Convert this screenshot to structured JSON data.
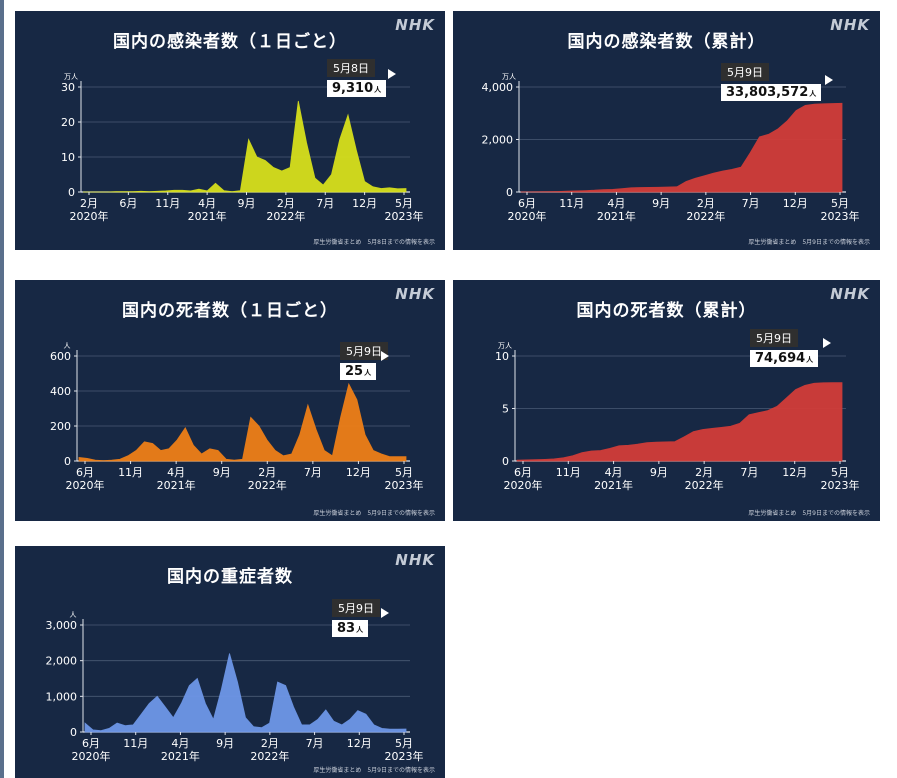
{
  "brand": "NHK",
  "chart_data": [
    {
      "type": "area",
      "title": "国内の感染者数（１日ごと）",
      "ylabel": "万人",
      "ylim": [
        0,
        30
      ],
      "yticks": [
        "0",
        "10",
        "20",
        "30"
      ],
      "xticks": [
        {
          "label": "2月",
          "year": "2020年"
        },
        {
          "label": "6月"
        },
        {
          "label": "11月"
        },
        {
          "label": "4月",
          "year": "2021年"
        },
        {
          "label": "9月"
        },
        {
          "label": "2月",
          "year": "2022年"
        },
        {
          "label": "7月"
        },
        {
          "label": "12月"
        },
        {
          "label": "5月",
          "year": "2023年"
        }
      ],
      "x": [
        0,
        1,
        2,
        3,
        4,
        5,
        6,
        7,
        8,
        9,
        10,
        11,
        12,
        13,
        14,
        15,
        16,
        17,
        18,
        19,
        20,
        21,
        22,
        23,
        24,
        25,
        26,
        27,
        28,
        29,
        30,
        31,
        32,
        33,
        34,
        35,
        36,
        37,
        38,
        39
      ],
      "values": [
        0,
        0,
        0,
        0,
        0.1,
        0.1,
        0.1,
        0.2,
        0.1,
        0.2,
        0.3,
        0.5,
        0.5,
        0.3,
        0.8,
        0.3,
        2.5,
        0.4,
        0.1,
        0.4,
        15,
        10,
        9,
        7,
        6,
        7,
        26,
        14,
        4,
        2,
        5,
        15,
        22,
        12,
        3,
        1.5,
        1,
        1.2,
        0.9,
        1
      ],
      "color": "#d7e01b",
      "annotation": {
        "date": "5月8日",
        "value": "9,310",
        "unit": "人"
      },
      "source": "厚生労働省まとめ　5月8日までの情報を表示"
    },
    {
      "type": "area",
      "title": "国内の感染者数（累計）",
      "ylabel": "万人",
      "ylim": [
        0,
        4000
      ],
      "yticks": [
        "0",
        "2,000",
        "4,000"
      ],
      "xticks": [
        {
          "label": "6月",
          "year": "2020年"
        },
        {
          "label": "11月"
        },
        {
          "label": "4月",
          "year": "2021年"
        },
        {
          "label": "9月"
        },
        {
          "label": "2月",
          "year": "2022年"
        },
        {
          "label": "7月"
        },
        {
          "label": "12月"
        },
        {
          "label": "5月",
          "year": "2023年"
        }
      ],
      "x": [
        0,
        1,
        2,
        3,
        4,
        5,
        6,
        7,
        8,
        9,
        10,
        11,
        12,
        13,
        14,
        15,
        16,
        17,
        18,
        19,
        20,
        21,
        22,
        23,
        24,
        25,
        26,
        27,
        28,
        29,
        30,
        31,
        32,
        33,
        34,
        35
      ],
      "values": [
        2,
        5,
        8,
        12,
        20,
        30,
        40,
        55,
        70,
        90,
        100,
        130,
        160,
        170,
        175,
        180,
        190,
        200,
        400,
        520,
        620,
        720,
        800,
        860,
        950,
        1500,
        2100,
        2200,
        2400,
        2700,
        3100,
        3300,
        3350,
        3360,
        3370,
        3380
      ],
      "color": "#d23d39",
      "annotation": {
        "date": "5月9日",
        "value": "33,803,572",
        "unit": "人"
      },
      "source": "厚生労働省まとめ　5月9日までの情報を表示"
    },
    {
      "type": "area",
      "title": "国内の死者数（１日ごと）",
      "ylabel": "人",
      "ylim": [
        0,
        600
      ],
      "yticks": [
        "0",
        "200",
        "400",
        "600"
      ],
      "xticks": [
        {
          "label": "6月",
          "year": "2020年"
        },
        {
          "label": "11月"
        },
        {
          "label": "4月",
          "year": "2021年"
        },
        {
          "label": "9月"
        },
        {
          "label": "2月",
          "year": "2022年"
        },
        {
          "label": "7月"
        },
        {
          "label": "12月"
        },
        {
          "label": "5月",
          "year": "2023年"
        }
      ],
      "x": [
        0,
        1,
        2,
        3,
        4,
        5,
        6,
        7,
        8,
        9,
        10,
        11,
        12,
        13,
        14,
        15,
        16,
        17,
        18,
        19,
        20,
        21,
        22,
        23,
        24,
        25,
        26,
        27,
        28,
        29,
        30,
        31,
        32,
        33,
        34,
        35,
        36,
        37,
        38,
        39,
        40
      ],
      "values": [
        20,
        15,
        5,
        2,
        5,
        10,
        30,
        60,
        110,
        100,
        60,
        70,
        120,
        190,
        90,
        40,
        70,
        60,
        10,
        5,
        10,
        250,
        200,
        120,
        60,
        30,
        40,
        150,
        320,
        180,
        60,
        30,
        250,
        440,
        350,
        150,
        60,
        40,
        25,
        25,
        25
      ],
      "color": "#ee7f17",
      "annotation": {
        "date": "5月9日",
        "value": "25",
        "unit": "人"
      },
      "source": "厚生労働省まとめ　5月9日までの情報を表示"
    },
    {
      "type": "area",
      "title": "国内の死者数（累計）",
      "ylabel": "万人",
      "ylim": [
        0,
        10
      ],
      "yticks": [
        "0",
        "5",
        "10"
      ],
      "xticks": [
        {
          "label": "6月",
          "year": "2020年"
        },
        {
          "label": "11月"
        },
        {
          "label": "4月",
          "year": "2021年"
        },
        {
          "label": "9月"
        },
        {
          "label": "2月",
          "year": "2022年"
        },
        {
          "label": "7月"
        },
        {
          "label": "12月"
        },
        {
          "label": "5月",
          "year": "2023年"
        }
      ],
      "x": [
        0,
        1,
        2,
        3,
        4,
        5,
        6,
        7,
        8,
        9,
        10,
        11,
        12,
        13,
        14,
        15,
        16,
        17,
        18,
        19,
        20,
        21,
        22,
        23,
        24,
        25,
        26,
        27,
        28,
        29,
        30,
        31,
        32,
        33,
        34,
        35
      ],
      "values": [
        0.09,
        0.1,
        0.12,
        0.15,
        0.2,
        0.3,
        0.5,
        0.8,
        0.95,
        1.0,
        1.2,
        1.45,
        1.5,
        1.6,
        1.75,
        1.8,
        1.82,
        1.85,
        2.3,
        2.8,
        3.0,
        3.1,
        3.2,
        3.3,
        3.6,
        4.4,
        4.6,
        4.8,
        5.2,
        6.0,
        6.8,
        7.2,
        7.4,
        7.45,
        7.46,
        7.47
      ],
      "color": "#d23d39",
      "annotation": {
        "date": "5月9日",
        "value": "74,694",
        "unit": "人"
      },
      "source": "厚生労働省まとめ　5月9日までの情報を表示"
    },
    {
      "type": "area",
      "title": "国内の重症者数",
      "ylabel": "人",
      "ylim": [
        0,
        3000
      ],
      "yticks": [
        "0",
        "1,000",
        "2,000",
        "3,000"
      ],
      "xticks": [
        {
          "label": "6月",
          "year": "2020年"
        },
        {
          "label": "11月"
        },
        {
          "label": "4月",
          "year": "2021年"
        },
        {
          "label": "9月"
        },
        {
          "label": "2月",
          "year": "2022年"
        },
        {
          "label": "7月"
        },
        {
          "label": "12月"
        },
        {
          "label": "5月",
          "year": "2023年"
        }
      ],
      "x": [
        0,
        1,
        2,
        3,
        4,
        5,
        6,
        7,
        8,
        9,
        10,
        11,
        12,
        13,
        14,
        15,
        16,
        17,
        18,
        19,
        20,
        21,
        22,
        23,
        24,
        25,
        26,
        27,
        28,
        29,
        30,
        31,
        32,
        33,
        34,
        35,
        36,
        37,
        38,
        39,
        40
      ],
      "values": [
        250,
        60,
        40,
        100,
        250,
        180,
        200,
        500,
        800,
        1000,
        700,
        400,
        800,
        1300,
        1500,
        800,
        350,
        1200,
        2200,
        1400,
        400,
        150,
        120,
        250,
        1400,
        1300,
        700,
        200,
        200,
        350,
        620,
        300,
        200,
        350,
        600,
        500,
        200,
        100,
        80,
        80,
        83
      ],
      "color": "#6e97e8",
      "annotation": {
        "date": "5月9日",
        "value": "83",
        "unit": "人"
      },
      "source": "厚生労働省まとめ　5月9日までの情報を表示"
    }
  ]
}
